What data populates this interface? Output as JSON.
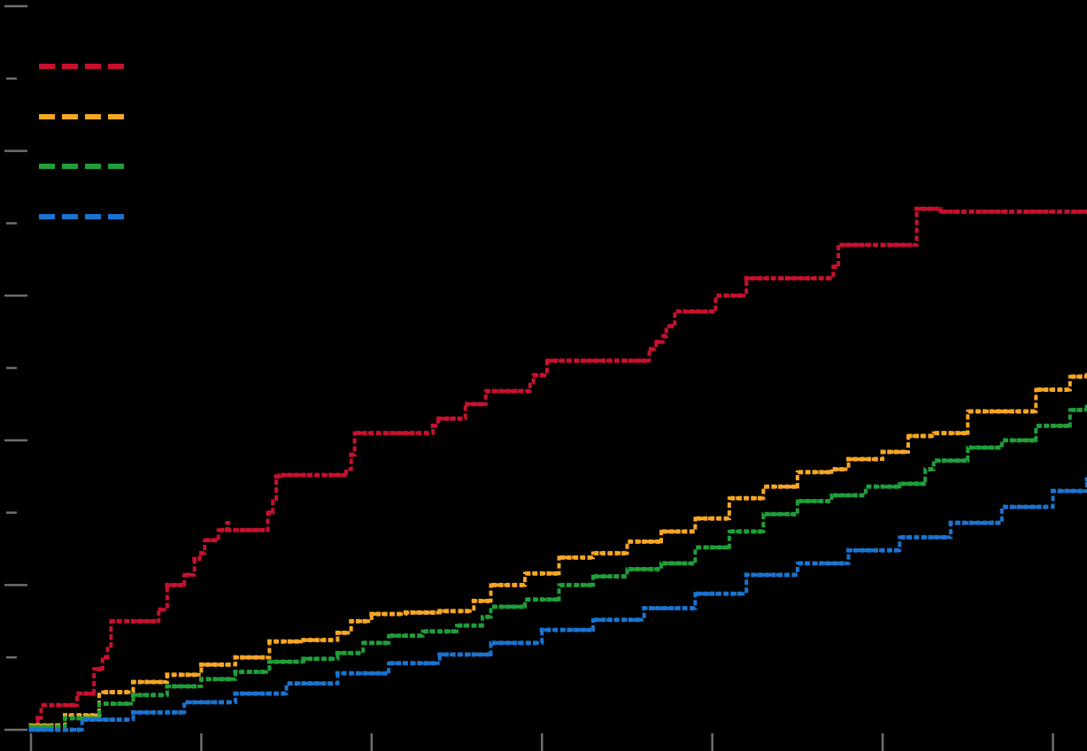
{
  "chart_data": {
    "type": "line",
    "step": true,
    "background": "#000000",
    "axis_color": "#6e6e6e",
    "xlim": [
      0,
      6.2
    ],
    "ylim": [
      0,
      0.5
    ],
    "xticks": [
      0,
      1,
      2,
      3,
      4,
      5,
      6
    ],
    "yticks": [
      0,
      0.05,
      0.1,
      0.15,
      0.2,
      0.25,
      0.3,
      0.35,
      0.4,
      0.45,
      0.5
    ],
    "grid": false,
    "legend_position": "top-left",
    "line_style": "dashed",
    "series": [
      {
        "color": "#c8102e",
        "x": [
          0,
          0.04,
          0.06,
          0.2,
          0.27,
          0.37,
          0.42,
          0.45,
          0.47,
          0.68,
          0.75,
          0.8,
          0.87,
          0.9,
          0.96,
          0.99,
          1.02,
          1.06,
          1.1,
          1.15,
          1.16,
          1.37,
          1.39,
          1.42,
          1.44,
          1.46,
          1.48,
          1.82,
          1.85,
          1.88,
          1.9,
          2.34,
          2.36,
          2.39,
          2.52,
          2.55,
          2.67,
          2.9,
          2.93,
          2.95,
          3.03,
          3.6,
          3.63,
          3.67,
          3.71,
          3.73,
          3.78,
          3.94,
          4.02,
          4.17,
          4.2,
          4.69,
          4.71,
          4.74,
          5.17,
          5.2,
          5.34,
          6.2
        ],
        "y": [
          0.002,
          0.008,
          0.017,
          0.017,
          0.025,
          0.042,
          0.05,
          0.058,
          0.075,
          0.075,
          0.083,
          0.1,
          0.1,
          0.107,
          0.118,
          0.122,
          0.131,
          0.131,
          0.138,
          0.143,
          0.138,
          0.138,
          0.15,
          0.158,
          0.175,
          0.176,
          0.176,
          0.176,
          0.18,
          0.19,
          0.205,
          0.205,
          0.21,
          0.215,
          0.215,
          0.225,
          0.234,
          0.234,
          0.24,
          0.245,
          0.255,
          0.255,
          0.263,
          0.268,
          0.272,
          0.279,
          0.289,
          0.289,
          0.3,
          0.3,
          0.312,
          0.312,
          0.32,
          0.335,
          0.335,
          0.36,
          0.358,
          0.358
        ],
        "marker_step": 0.04
      },
      {
        "color": "#f5a623",
        "x": [
          0,
          0.2,
          0.4,
          0.6,
          0.8,
          1,
          1.2,
          1.4,
          1.6,
          1.8,
          1.88,
          2,
          2.2,
          2.4,
          2.6,
          2.7,
          2.9,
          3.1,
          3.3,
          3.5,
          3.7,
          3.9,
          4.1,
          4.3,
          4.5,
          4.7,
          4.8,
          5,
          5.15,
          5.3,
          5.5,
          5.7,
          5.9,
          6.1,
          6.2
        ],
        "y": [
          0.003,
          0.01,
          0.026,
          0.033,
          0.038,
          0.045,
          0.05,
          0.061,
          0.062,
          0.067,
          0.075,
          0.08,
          0.081,
          0.082,
          0.089,
          0.1,
          0.108,
          0.119,
          0.122,
          0.13,
          0.137,
          0.146,
          0.16,
          0.168,
          0.178,
          0.18,
          0.187,
          0.192,
          0.203,
          0.205,
          0.22,
          0.22,
          0.235,
          0.244,
          0.245
        ],
        "marker_step": 0.04
      },
      {
        "color": "#1f9e3a",
        "x": [
          0,
          0.2,
          0.4,
          0.6,
          0.8,
          1,
          1.2,
          1.4,
          1.6,
          1.8,
          1.95,
          2.1,
          2.3,
          2.5,
          2.65,
          2.7,
          2.9,
          3.1,
          3.3,
          3.5,
          3.7,
          3.9,
          4.1,
          4.3,
          4.5,
          4.7,
          4.9,
          5.1,
          5.25,
          5.3,
          5.5,
          5.7,
          5.9,
          6.1,
          6.2
        ],
        "y": [
          0.002,
          0.008,
          0.018,
          0.024,
          0.03,
          0.035,
          0.04,
          0.047,
          0.049,
          0.053,
          0.06,
          0.065,
          0.068,
          0.072,
          0.078,
          0.085,
          0.09,
          0.1,
          0.106,
          0.111,
          0.115,
          0.126,
          0.137,
          0.149,
          0.158,
          0.162,
          0.168,
          0.17,
          0.18,
          0.186,
          0.195,
          0.2,
          0.21,
          0.221,
          0.223
        ],
        "marker_step": 0.04
      },
      {
        "color": "#1a73d0",
        "x": [
          0,
          0.3,
          0.6,
          0.9,
          1.2,
          1.5,
          1.8,
          2.1,
          2.4,
          2.7,
          3,
          3.3,
          3.6,
          3.9,
          4.2,
          4.5,
          4.8,
          5.1,
          5.4,
          5.7,
          6,
          6.2
        ],
        "y": [
          0,
          0.007,
          0.012,
          0.019,
          0.025,
          0.032,
          0.039,
          0.046,
          0.052,
          0.06,
          0.069,
          0.076,
          0.084,
          0.094,
          0.107,
          0.115,
          0.124,
          0.133,
          0.143,
          0.154,
          0.165,
          0.173
        ],
        "marker_step": 0.04
      }
    ]
  }
}
